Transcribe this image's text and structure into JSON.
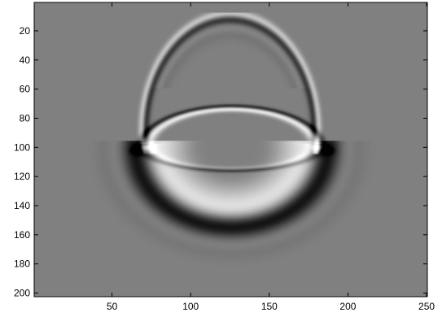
{
  "chart_data": {
    "type": "heatmap",
    "title": "",
    "xlabel": "",
    "ylabel": "",
    "colormap": "gray",
    "xlim": [
      0.5,
      250.5
    ],
    "ylim": [
      0.5,
      202.5
    ],
    "y_axis_direction": "reversed",
    "x_ticks": [
      50,
      100,
      150,
      200,
      250
    ],
    "y_ticks": [
      20,
      40,
      60,
      80,
      100,
      120,
      140,
      160,
      180,
      200
    ],
    "background_value": 0,
    "features": [
      {
        "name": "upper arc",
        "center_x": 125,
        "center_y": 88,
        "radius_x": 55,
        "radius_y": 78,
        "y_range": [
          8,
          100
        ],
        "amplitude": 0.7
      },
      {
        "name": "upper lens boundary",
        "center_x": 126,
        "center_y": 100,
        "radius_x": 57,
        "radius_y": 28,
        "amplitude": 0.85
      },
      {
        "name": "lower lens boundary",
        "center_x": 126,
        "center_y": 100,
        "radius_x": 56,
        "radius_y": 16,
        "amplitude": -0.6
      },
      {
        "name": "lower bowl",
        "center_x": 126,
        "center_y": 100,
        "radius_x": 58,
        "radius_y": 52,
        "amplitude": -1.0
      },
      {
        "name": "bright junctions",
        "points": [
          [
            71,
            100
          ],
          [
            182,
            100
          ]
        ],
        "amplitude": 1.0
      }
    ]
  }
}
